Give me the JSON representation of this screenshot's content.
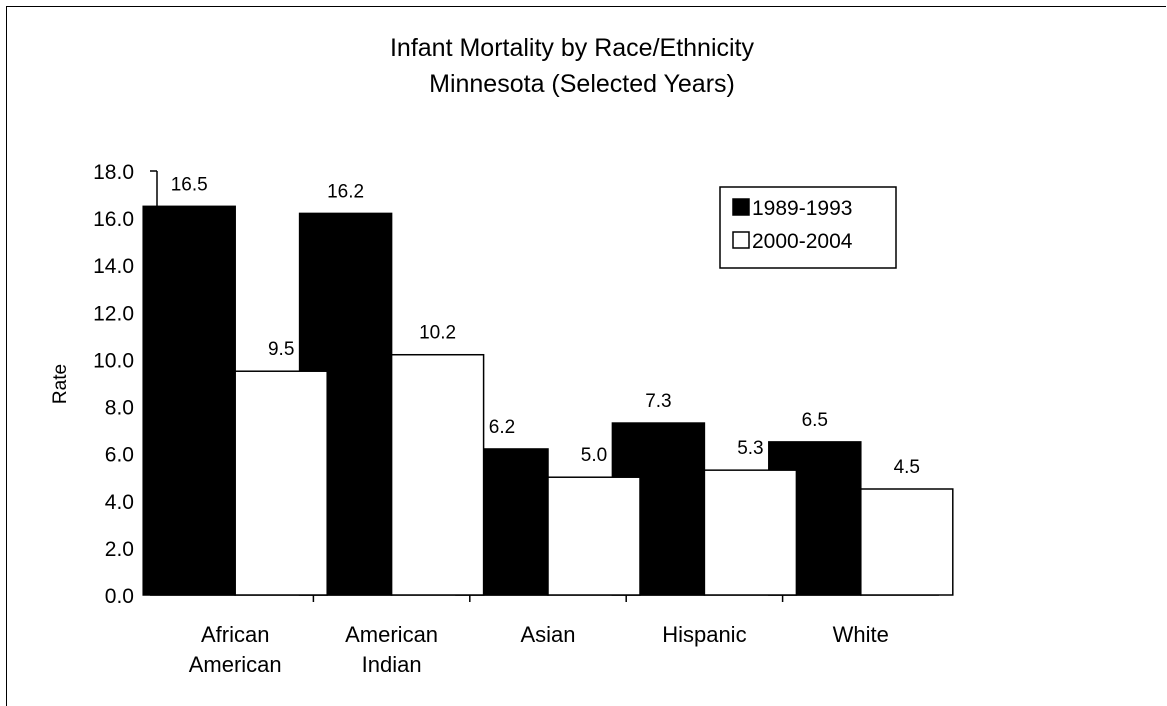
{
  "chart_data": {
    "type": "bar",
    "title": [
      "Infant Mortality by Race/Ethnicity",
      "Minnesota (Selected Years)"
    ],
    "ylabel": "Rate",
    "xlabel": "",
    "ylim": [
      0,
      18
    ],
    "yticks": [
      "0.0",
      "2.0",
      "4.0",
      "6.0",
      "8.0",
      "10.0",
      "12.0",
      "14.0",
      "16.0",
      "18.0"
    ],
    "categories": [
      [
        "African",
        "American"
      ],
      [
        "American",
        "Indian"
      ],
      [
        "Asian"
      ],
      [
        "Hispanic"
      ],
      [
        "White"
      ]
    ],
    "series": [
      {
        "name": "1989-1993",
        "values": [
          16.5,
          16.2,
          6.2,
          7.3,
          6.5
        ],
        "labels": [
          "16.5",
          "16.2",
          "6.2",
          "7.3",
          "6.5"
        ],
        "color": "#000000"
      },
      {
        "name": "2000-2004",
        "values": [
          9.5,
          10.2,
          5.0,
          5.3,
          4.5
        ],
        "labels": [
          "9.5",
          "10.2",
          "5.0",
          "5.3",
          "4.5"
        ],
        "color": "#ffffff"
      }
    ],
    "legend_position": "top-right",
    "grid": false
  }
}
